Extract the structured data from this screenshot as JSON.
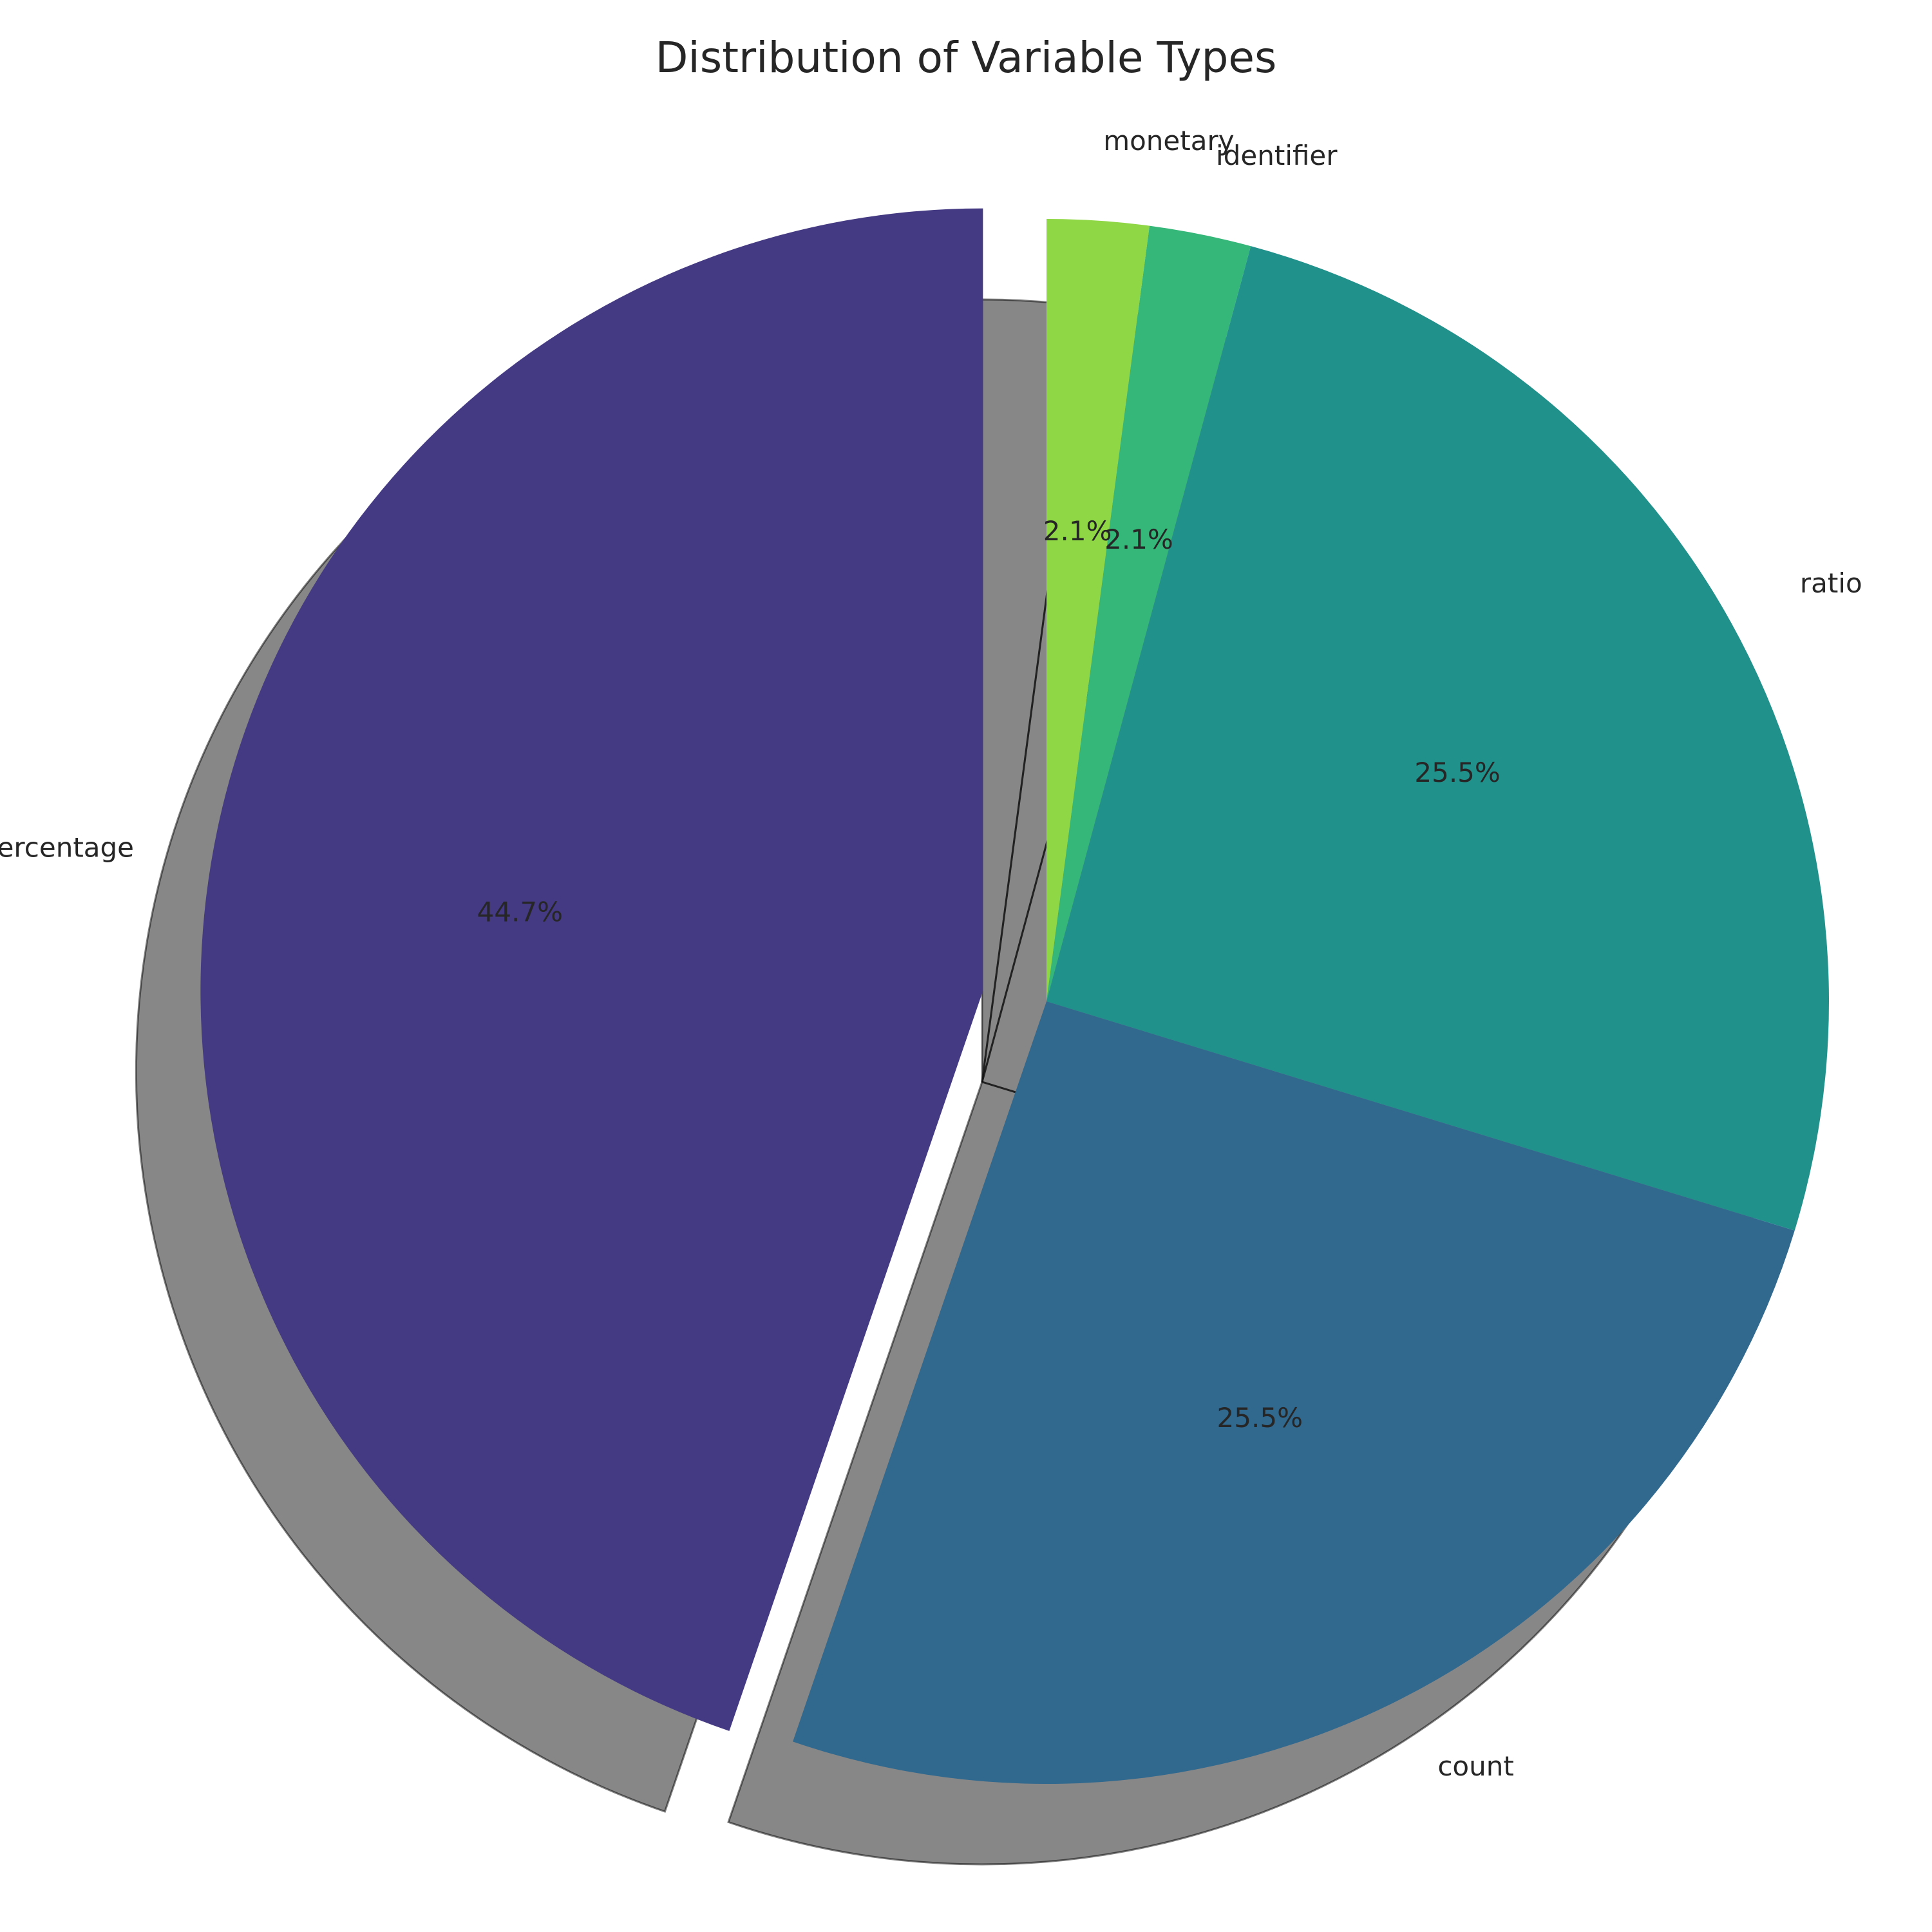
{
  "chart_data": {
    "type": "pie",
    "title": "Distribution of Variable Types",
    "start_angle_deg": 90,
    "direction": "clockwise",
    "shadow": true,
    "explode_slice": "percentage",
    "slices": [
      {
        "label": "monetary",
        "value": 2.1,
        "pct_text": "2.1%",
        "color": "#8fd744"
      },
      {
        "label": "identifier",
        "value": 2.1,
        "pct_text": "2.1%",
        "color": "#35b779"
      },
      {
        "label": "ratio",
        "value": 25.5,
        "pct_text": "25.5%",
        "color": "#21918c"
      },
      {
        "label": "count",
        "value": 25.5,
        "pct_text": "25.5%",
        "color": "#31688e"
      },
      {
        "label": "percentage",
        "value": 44.7,
        "pct_text": "44.7%",
        "color": "#443983"
      }
    ]
  }
}
